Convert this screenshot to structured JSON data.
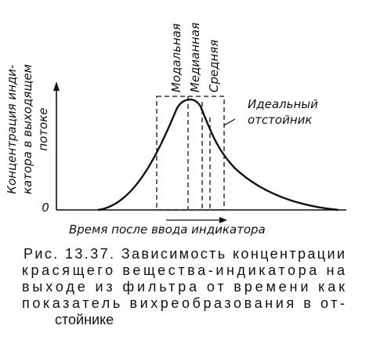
{
  "figure": {
    "y_axis_label": [
      "Концентрация инди-",
      "катора в выходящем",
      "потоке"
    ],
    "origin": "0",
    "markers": [
      "Модальная",
      "Медианная",
      "Средняя"
    ],
    "ideal_label": [
      "Идеальный",
      "отстойник"
    ],
    "x_axis_label": "Время после ввода индикатора",
    "caption": [
      "Рис. 13.37. Зависимость концентрации",
      "красящего вещества-индикатора на",
      "выходе из фильтра от времени как",
      "показатель вихреобразования в от-",
      "стойнике"
    ]
  }
}
